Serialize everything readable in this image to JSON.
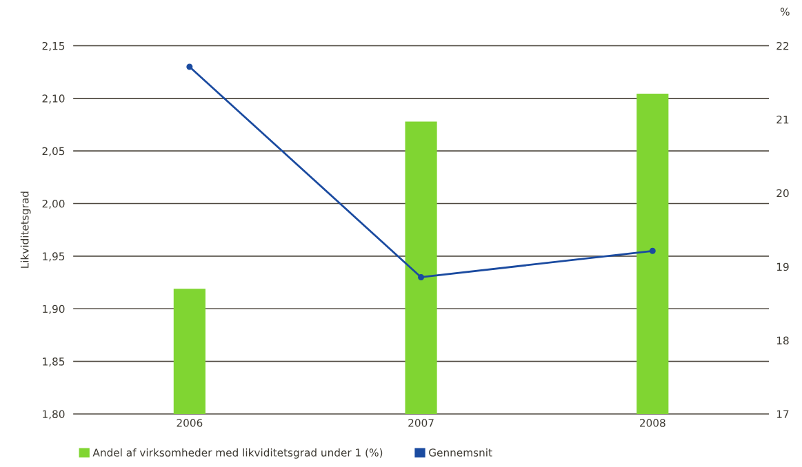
{
  "chart_data": {
    "type": "bar",
    "categories": [
      "2006",
      "2007",
      "2008"
    ],
    "ylabel": "Likviditetsgrad",
    "y2label": "%",
    "ylim": [
      1.8,
      2.15
    ],
    "yticks": [
      {
        "value": 1.8,
        "label": "1,80"
      },
      {
        "value": 1.85,
        "label": "1,85"
      },
      {
        "value": 1.9,
        "label": "1,90"
      },
      {
        "value": 1.95,
        "label": "1,95"
      },
      {
        "value": 2.0,
        "label": "2,00"
      },
      {
        "value": 2.05,
        "label": "2,05"
      },
      {
        "value": 2.1,
        "label": "2,10"
      },
      {
        "value": 2.15,
        "label": "2,15"
      }
    ],
    "y2lim": [
      17,
      22
    ],
    "y2ticks": [
      17,
      18,
      19,
      20,
      21,
      22
    ],
    "grid": "y",
    "legend": "bottom",
    "series": [
      {
        "name": "Andel af virksomheder med likviditetsgrad under 1 (%)",
        "axis": "y2",
        "color": "#80d532",
        "values": [
          18.7,
          20.97,
          21.35
        ]
      },
      {
        "name": "Gennemsnit",
        "type": "line",
        "axis": "y",
        "color": "#1b4ba0",
        "marker": "circle",
        "line_style": "solid",
        "values": [
          2.13,
          1.93,
          1.955
        ]
      }
    ]
  }
}
